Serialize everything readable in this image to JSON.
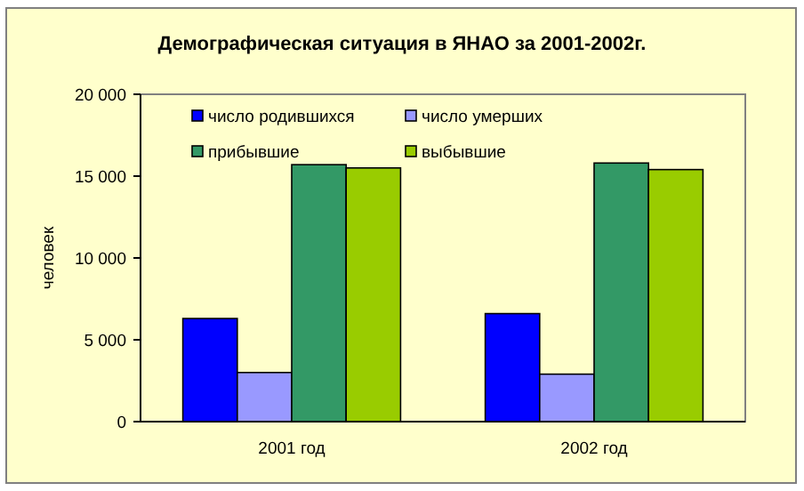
{
  "chart_data": {
    "type": "bar",
    "title": "Демографическая ситуация в ЯНАО за 2001-2002г.",
    "ylabel": "человек",
    "categories": [
      "2001 год",
      "2002 год"
    ],
    "series": [
      {
        "name": "число родившихся",
        "color": "#0000ff",
        "values": [
          6300,
          6600
        ]
      },
      {
        "name": "число умерших",
        "color": "#9999ff",
        "values": [
          3000,
          2900
        ]
      },
      {
        "name": "прибывшие",
        "color": "#339966",
        "values": [
          15700,
          15800
        ]
      },
      {
        "name": "выбывшие",
        "color": "#99cc00",
        "values": [
          15500,
          15400
        ]
      }
    ],
    "ylim": [
      0,
      20000
    ],
    "yticks": [
      {
        "value": 0,
        "label": "0"
      },
      {
        "value": 5000,
        "label": "5 000"
      },
      {
        "value": 10000,
        "label": "10 000"
      },
      {
        "value": 15000,
        "label": "15 000"
      },
      {
        "value": 20000,
        "label": "20 000"
      }
    ],
    "grid": false,
    "legend": "top left"
  }
}
